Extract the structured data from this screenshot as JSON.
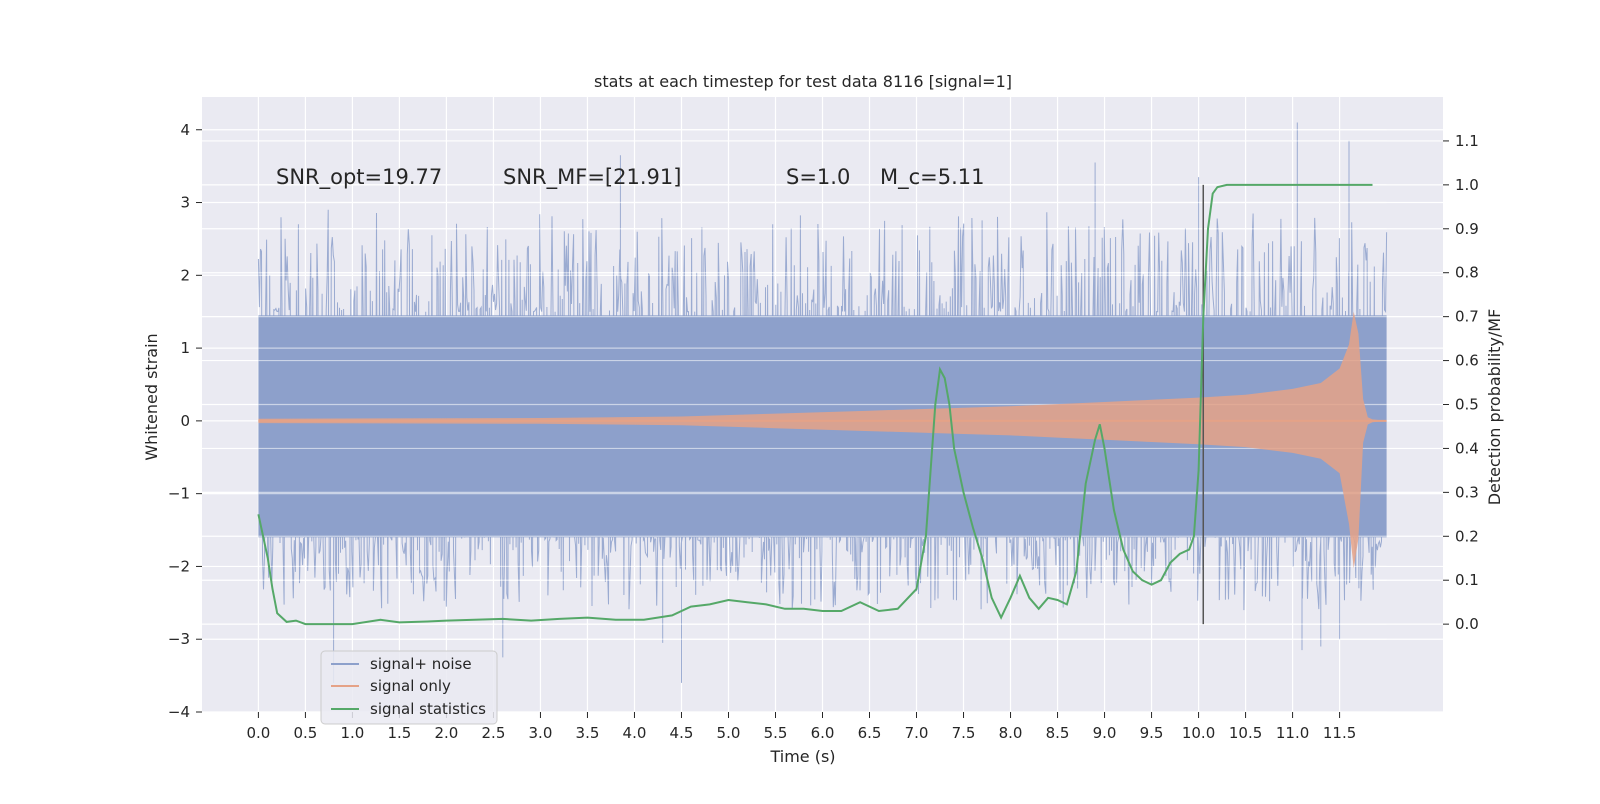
{
  "chart_data": {
    "type": "line",
    "title": "stats at each timestep for test data 8116 [signal=1]",
    "xlabel": "Time (s)",
    "ylabel_left": "Whitened strain",
    "ylabel_right": "Detection probability/MF",
    "xlim": [
      -0.6,
      12.6
    ],
    "ylim_left": [
      -4.0,
      4.45
    ],
    "ylim_right": [
      -0.2,
      1.2
    ],
    "x_ticks": [
      "0.0",
      "0.5",
      "1.0",
      "1.5",
      "2.0",
      "2.5",
      "3.0",
      "3.5",
      "4.0",
      "4.5",
      "5.0",
      "5.5",
      "6.0",
      "6.5",
      "7.0",
      "7.5",
      "8.0",
      "8.5",
      "9.0",
      "9.5",
      "10.0",
      "10.5",
      "11.0",
      "11.5"
    ],
    "y_left_ticks": [
      "4",
      "3",
      "2",
      "1",
      "0",
      "−1",
      "−2",
      "−3",
      "−4"
    ],
    "y_right_ticks": [
      "1.1",
      "1.0",
      "0.9",
      "0.8",
      "0.7",
      "0.6",
      "0.5",
      "0.4",
      "0.3",
      "0.2",
      "0.1",
      "0.0"
    ],
    "annotations": {
      "snr_opt": "SNR_opt=19.77",
      "snr_mf": "SNR_MF=[21.91]",
      "s_value": "S=1.0",
      "mc_value": "M_c=5.11"
    },
    "legend": {
      "position": "lower-left",
      "entries": [
        "signal+ noise",
        "signal only",
        "signal statistics"
      ]
    },
    "colors": {
      "noise": "#8da0cb",
      "signal": "#e5a287",
      "stat": "#55a868",
      "background": "#eaeaf2",
      "grid": "#ffffff",
      "marker": "#555555"
    },
    "trigger_time": 10.05,
    "series": [
      {
        "name": "signal statistics",
        "axis": "right",
        "x": [
          0.0,
          0.05,
          0.1,
          0.15,
          0.2,
          0.3,
          0.4,
          0.5,
          0.7,
          1.0,
          1.3,
          1.5,
          1.8,
          2.0,
          2.3,
          2.6,
          2.9,
          3.2,
          3.5,
          3.8,
          4.1,
          4.4,
          4.6,
          4.8,
          5.0,
          5.2,
          5.4,
          5.6,
          5.8,
          6.0,
          6.2,
          6.4,
          6.6,
          6.8,
          7.0,
          7.1,
          7.15,
          7.2,
          7.25,
          7.3,
          7.35,
          7.4,
          7.5,
          7.6,
          7.7,
          7.8,
          7.9,
          8.0,
          8.1,
          8.2,
          8.3,
          8.4,
          8.5,
          8.6,
          8.7,
          8.8,
          8.9,
          8.95,
          9.0,
          9.05,
          9.1,
          9.2,
          9.3,
          9.4,
          9.5,
          9.6,
          9.7,
          9.8,
          9.9,
          9.95,
          10.0,
          10.05,
          10.1,
          10.15,
          10.2,
          10.3,
          10.5,
          11.0,
          11.5,
          11.85
        ],
        "y": [
          0.25,
          0.2,
          0.15,
          0.08,
          0.025,
          0.005,
          0.008,
          0.0,
          0.0,
          0.0,
          0.01,
          0.004,
          0.006,
          0.008,
          0.01,
          0.012,
          0.008,
          0.012,
          0.015,
          0.01,
          0.01,
          0.02,
          0.04,
          0.045,
          0.055,
          0.05,
          0.045,
          0.035,
          0.035,
          0.03,
          0.03,
          0.05,
          0.03,
          0.035,
          0.08,
          0.2,
          0.35,
          0.5,
          0.58,
          0.56,
          0.5,
          0.4,
          0.3,
          0.22,
          0.15,
          0.06,
          0.015,
          0.06,
          0.11,
          0.06,
          0.035,
          0.06,
          0.055,
          0.045,
          0.12,
          0.32,
          0.42,
          0.455,
          0.4,
          0.33,
          0.26,
          0.17,
          0.12,
          0.1,
          0.09,
          0.1,
          0.14,
          0.16,
          0.17,
          0.2,
          0.35,
          0.7,
          0.9,
          0.98,
          0.995,
          1.0,
          1.0,
          1.0,
          1.0,
          1.0
        ]
      },
      {
        "name": "signal only",
        "axis": "left",
        "envelope_x": [
          0.0,
          3.0,
          4.5,
          5.5,
          6.5,
          7.0,
          7.5,
          8.0,
          8.5,
          9.0,
          9.5,
          10.0,
          10.5,
          11.0,
          11.3,
          11.5,
          11.6,
          11.65,
          11.7,
          11.75,
          11.8,
          11.85,
          12.0
        ],
        "envelope_y": [
          0.03,
          0.04,
          0.06,
          0.1,
          0.14,
          0.16,
          0.18,
          0.2,
          0.23,
          0.26,
          0.29,
          0.32,
          0.36,
          0.44,
          0.52,
          0.72,
          1.05,
          1.5,
          1.2,
          0.3,
          0.05,
          0.02,
          0.0
        ]
      },
      {
        "name": "signal+ noise",
        "axis": "left",
        "x_range": [
          0.0,
          12.0
        ],
        "band": [
          -1.6,
          1.45
        ],
        "peaks": [
          [
            0.8,
            -3.6
          ],
          [
            4.5,
            -3.6
          ],
          [
            2.6,
            -3.25
          ],
          [
            11.1,
            -3.15
          ],
          [
            11.3,
            -3.1
          ],
          [
            4.3,
            -3.05
          ],
          [
            11.5,
            -3.0
          ],
          [
            3.85,
            3.65
          ],
          [
            11.05,
            4.1
          ],
          [
            11.6,
            3.85
          ],
          [
            8.9,
            3.55
          ],
          [
            10.0,
            3.35
          ]
        ]
      }
    ]
  }
}
